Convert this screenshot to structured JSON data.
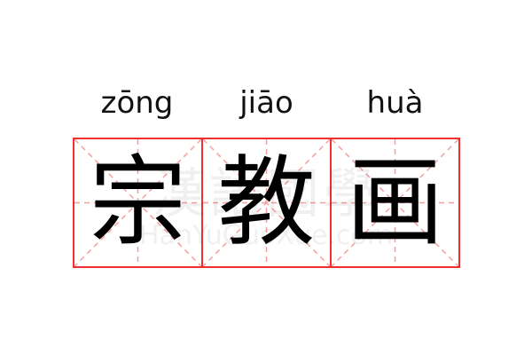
{
  "characters": [
    {
      "pinyin": "zōng",
      "hanzi": "宗"
    },
    {
      "pinyin": "jiāo",
      "hanzi": "教"
    },
    {
      "pinyin": "huà",
      "hanzi": "画"
    }
  ],
  "watermark": {
    "text": "漢語國學",
    "url": "HanYuGuoXue.com"
  },
  "colors": {
    "grid_border": "#f03030",
    "grid_guides": "#f5a0a0",
    "text": "#000000"
  }
}
